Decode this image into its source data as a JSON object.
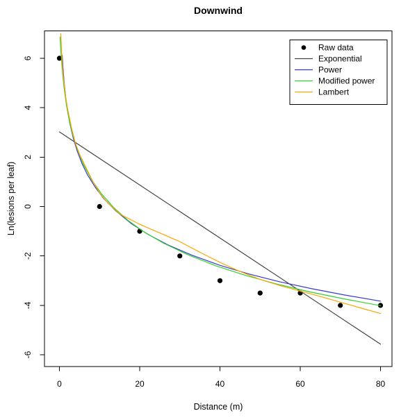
{
  "title": "Downwind",
  "chart_data": {
    "type": "line",
    "title": "Downwind",
    "xlabel": "Distance (m)",
    "ylabel": "Ln(lesions per leaf)",
    "xlim": [
      -3.7,
      82.9
    ],
    "ylim": [
      -6.5,
      7.1
    ],
    "grid": false,
    "legend_position": "top-right",
    "background_color": "#ffffff",
    "axis_color": "#000000",
    "x_tick_values": [
      0,
      20,
      40,
      60,
      80
    ],
    "x_tick_labels": [
      "0",
      "20",
      "40",
      "60",
      "80"
    ],
    "y_tick_values": [
      -6,
      -4,
      -2,
      0,
      2,
      4,
      6
    ],
    "y_tick_labels": [
      "-6",
      "-4",
      "-2",
      "0",
      "2",
      "4",
      "6"
    ],
    "raw_data": {
      "label": "Raw data",
      "symbol": "filled-circle",
      "color": "#000000",
      "points": [
        [
          0,
          6
        ],
        [
          10,
          0
        ],
        [
          20,
          -1
        ],
        [
          30,
          -2
        ],
        [
          40,
          -3
        ],
        [
          50,
          -3.5
        ],
        [
          60,
          -3.5
        ],
        [
          70,
          -4
        ],
        [
          80,
          -4
        ]
      ]
    },
    "series": [
      {
        "name": "Exponential",
        "color": "#444444",
        "points": [
          [
            0,
            3.02
          ],
          [
            80,
            -5.57
          ]
        ]
      },
      {
        "name": "Power",
        "color": "#3939cf",
        "points": [
          [
            0.7,
            6.12
          ],
          [
            0.9,
            5.59
          ],
          [
            1.2,
            4.99
          ],
          [
            1.6,
            4.38
          ],
          [
            2,
            3.91
          ],
          [
            2.6,
            3.36
          ],
          [
            3.4,
            2.8
          ],
          [
            4.4,
            2.26
          ],
          [
            5.6,
            1.75
          ],
          [
            7,
            1.28
          ],
          [
            9,
            0.76
          ],
          [
            11,
            0.33
          ],
          [
            14,
            -0.17
          ],
          [
            18,
            -0.7
          ],
          [
            22,
            -1.12
          ],
          [
            27,
            -1.55
          ],
          [
            33,
            -1.97
          ],
          [
            40,
            -2.38
          ],
          [
            47,
            -2.72
          ],
          [
            55,
            -3.05
          ],
          [
            63,
            -3.33
          ],
          [
            71,
            -3.58
          ],
          [
            80,
            -3.83
          ]
        ]
      },
      {
        "name": "Modified power",
        "color": "#2fd12f",
        "points": [
          [
            0.17,
            6.86
          ],
          [
            0.35,
            6.32
          ],
          [
            0.6,
            5.73
          ],
          [
            0.9,
            5.19
          ],
          [
            1.3,
            4.62
          ],
          [
            1.8,
            4.06
          ],
          [
            2.5,
            3.46
          ],
          [
            3.4,
            2.86
          ],
          [
            4.5,
            2.3
          ],
          [
            6,
            1.7
          ],
          [
            8,
            1.09
          ],
          [
            10.5,
            0.51
          ],
          [
            13.5,
            -0.04
          ],
          [
            17,
            -0.55
          ],
          [
            21,
            -1.02
          ],
          [
            26,
            -1.49
          ],
          [
            32,
            -1.95
          ],
          [
            39,
            -2.4
          ],
          [
            46,
            -2.77
          ],
          [
            54,
            -3.13
          ],
          [
            62,
            -3.44
          ],
          [
            71,
            -3.74
          ],
          [
            80,
            -4.01
          ]
        ]
      },
      {
        "name": "Lambert",
        "color": "#ffa500",
        "points": [
          [
            0.35,
            7.0
          ],
          [
            0.5,
            6.4
          ],
          [
            0.7,
            5.8
          ],
          [
            1,
            5.2
          ],
          [
            1.5,
            4.5
          ],
          [
            2,
            4.0
          ],
          [
            3,
            3.2
          ],
          [
            4,
            2.55
          ],
          [
            5,
            2.12
          ],
          [
            6,
            1.78
          ],
          [
            8,
            1.12
          ],
          [
            10,
            0.55
          ],
          [
            12,
            0.15
          ],
          [
            15,
            -0.3
          ],
          [
            20,
            -0.72
          ],
          [
            25,
            -1.07
          ],
          [
            30,
            -1.42
          ],
          [
            35,
            -1.85
          ],
          [
            40,
            -2.26
          ],
          [
            45,
            -2.63
          ],
          [
            50,
            -2.95
          ],
          [
            55,
            -3.2
          ],
          [
            60,
            -3.42
          ],
          [
            65,
            -3.64
          ],
          [
            70,
            -3.87
          ],
          [
            75,
            -4.1
          ],
          [
            80,
            -4.33
          ]
        ]
      }
    ],
    "legend": [
      {
        "label": "Raw data",
        "swatch": "point",
        "color": "#000000"
      },
      {
        "label": "Exponential",
        "swatch": "line",
        "color": "#444444"
      },
      {
        "label": "Power",
        "swatch": "line",
        "color": "#3939cf"
      },
      {
        "label": "Modified power",
        "swatch": "line",
        "color": "#2fd12f"
      },
      {
        "label": "Lambert",
        "swatch": "line",
        "color": "#ffa500"
      }
    ]
  }
}
